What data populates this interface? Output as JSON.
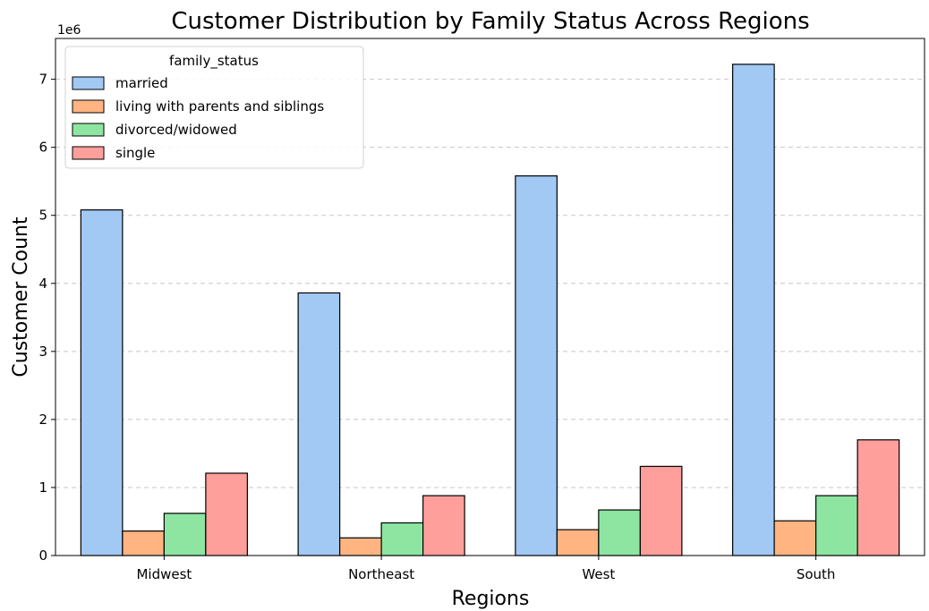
{
  "chart_data": {
    "type": "bar",
    "title": "Customer Distribution by Family Status Across Regions",
    "xlabel": "Regions",
    "ylabel": "Customer Count",
    "y_multiplier_label": "1e6",
    "ylim": [
      0,
      7.6
    ],
    "yticks": [
      0,
      1,
      2,
      3,
      4,
      5,
      6,
      7
    ],
    "grid": "y-dashed",
    "categories": [
      "Midwest",
      "Northeast",
      "West",
      "South"
    ],
    "legend": {
      "title": "family_status",
      "placement": "top-left"
    },
    "series": [
      {
        "name": "married",
        "color": "#a1c9f4",
        "values": [
          5.08,
          3.86,
          5.58,
          7.22
        ]
      },
      {
        "name": "living with parents and siblings",
        "color": "#ffb482",
        "values": [
          0.36,
          0.26,
          0.38,
          0.51
        ]
      },
      {
        "name": "divorced/widowed",
        "color": "#8de5a1",
        "values": [
          0.62,
          0.48,
          0.67,
          0.88
        ]
      },
      {
        "name": "single",
        "color": "#ff9f9b",
        "values": [
          1.21,
          0.88,
          1.31,
          1.7
        ]
      }
    ]
  }
}
